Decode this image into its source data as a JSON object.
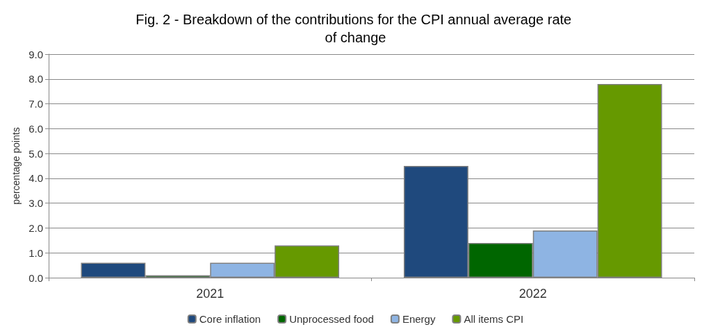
{
  "chart_data": {
    "type": "bar",
    "title": "Fig. 2 - Breakdown of the contributions for the CPI annual average rate of change",
    "ylabel": "percentage points",
    "categories": [
      "2021",
      "2022"
    ],
    "series": [
      {
        "name": "Core inflation",
        "color": "#1f497d",
        "values": [
          0.6,
          4.5
        ]
      },
      {
        "name": "Unprocessed food",
        "color": "#006600",
        "values": [
          0.1,
          1.4
        ]
      },
      {
        "name": "Energy",
        "color": "#8eb4e3",
        "values": [
          0.6,
          1.9
        ]
      },
      {
        "name": "All items CPI",
        "color": "#669900",
        "values": [
          1.3,
          7.8
        ]
      }
    ],
    "ylim": [
      0,
      9
    ],
    "yticks": [
      {
        "value": 0,
        "label": "0.0"
      },
      {
        "value": 1,
        "label": "1.0"
      },
      {
        "value": 2,
        "label": "2.0"
      },
      {
        "value": 3,
        "label": "3.0"
      },
      {
        "value": 4,
        "label": "4.0"
      },
      {
        "value": 5,
        "label": "5.0"
      },
      {
        "value": 6,
        "label": "6.0"
      },
      {
        "value": 7,
        "label": "7.0"
      },
      {
        "value": 8,
        "label": "8.0"
      },
      {
        "value": 9,
        "label": "9.0"
      }
    ],
    "grid": "y",
    "legend": "bottom"
  }
}
